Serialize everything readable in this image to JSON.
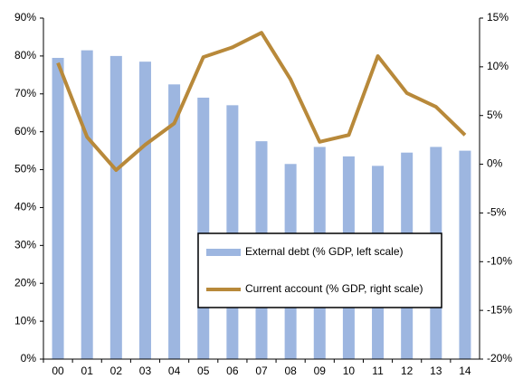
{
  "chart_data": {
    "type": "bar-line",
    "categories": [
      "00",
      "01",
      "02",
      "03",
      "04",
      "05",
      "06",
      "07",
      "08",
      "09",
      "10",
      "11",
      "12",
      "13",
      "14"
    ],
    "series": [
      {
        "name": "External debt (% GDP, left scale)",
        "type": "bar",
        "color": "#9db6e0",
        "values": [
          79.5,
          81.5,
          80,
          78.5,
          72.5,
          69,
          67,
          57.5,
          51.5,
          56,
          53.5,
          51,
          54.5,
          56,
          55
        ]
      },
      {
        "name": "Current account (% GDP, right scale)",
        "type": "line",
        "axis": "y2",
        "color": "#b8893a",
        "values": [
          10.4,
          2.8,
          -0.6,
          2.0,
          4.2,
          11.0,
          12.0,
          13.5,
          8.7,
          2.3,
          3.0,
          11.1,
          7.3,
          5.9,
          3.0
        ]
      }
    ],
    "ylim": [
      0,
      90
    ],
    "yticks": [
      {
        "value": 0,
        "label": "0%"
      },
      {
        "value": 10,
        "label": "10%"
      },
      {
        "value": 20,
        "label": "20%"
      },
      {
        "value": 30,
        "label": "30%"
      },
      {
        "value": 40,
        "label": "40%"
      },
      {
        "value": 50,
        "label": "50%"
      },
      {
        "value": 60,
        "label": "60%"
      },
      {
        "value": 70,
        "label": "70%"
      },
      {
        "value": 80,
        "label": "80%"
      },
      {
        "value": 90,
        "label": "90%"
      }
    ],
    "y2lim": [
      -20,
      15
    ],
    "y2ticks": [
      {
        "value": -20,
        "label": "-20%"
      },
      {
        "value": -15,
        "label": "-15%"
      },
      {
        "value": -10,
        "label": "-10%"
      },
      {
        "value": -5,
        "label": "-5%"
      },
      {
        "value": 0,
        "label": "0%"
      },
      {
        "value": 5,
        "label": "5%"
      },
      {
        "value": 10,
        "label": "10%"
      },
      {
        "value": 15,
        "label": "15%"
      }
    ]
  }
}
